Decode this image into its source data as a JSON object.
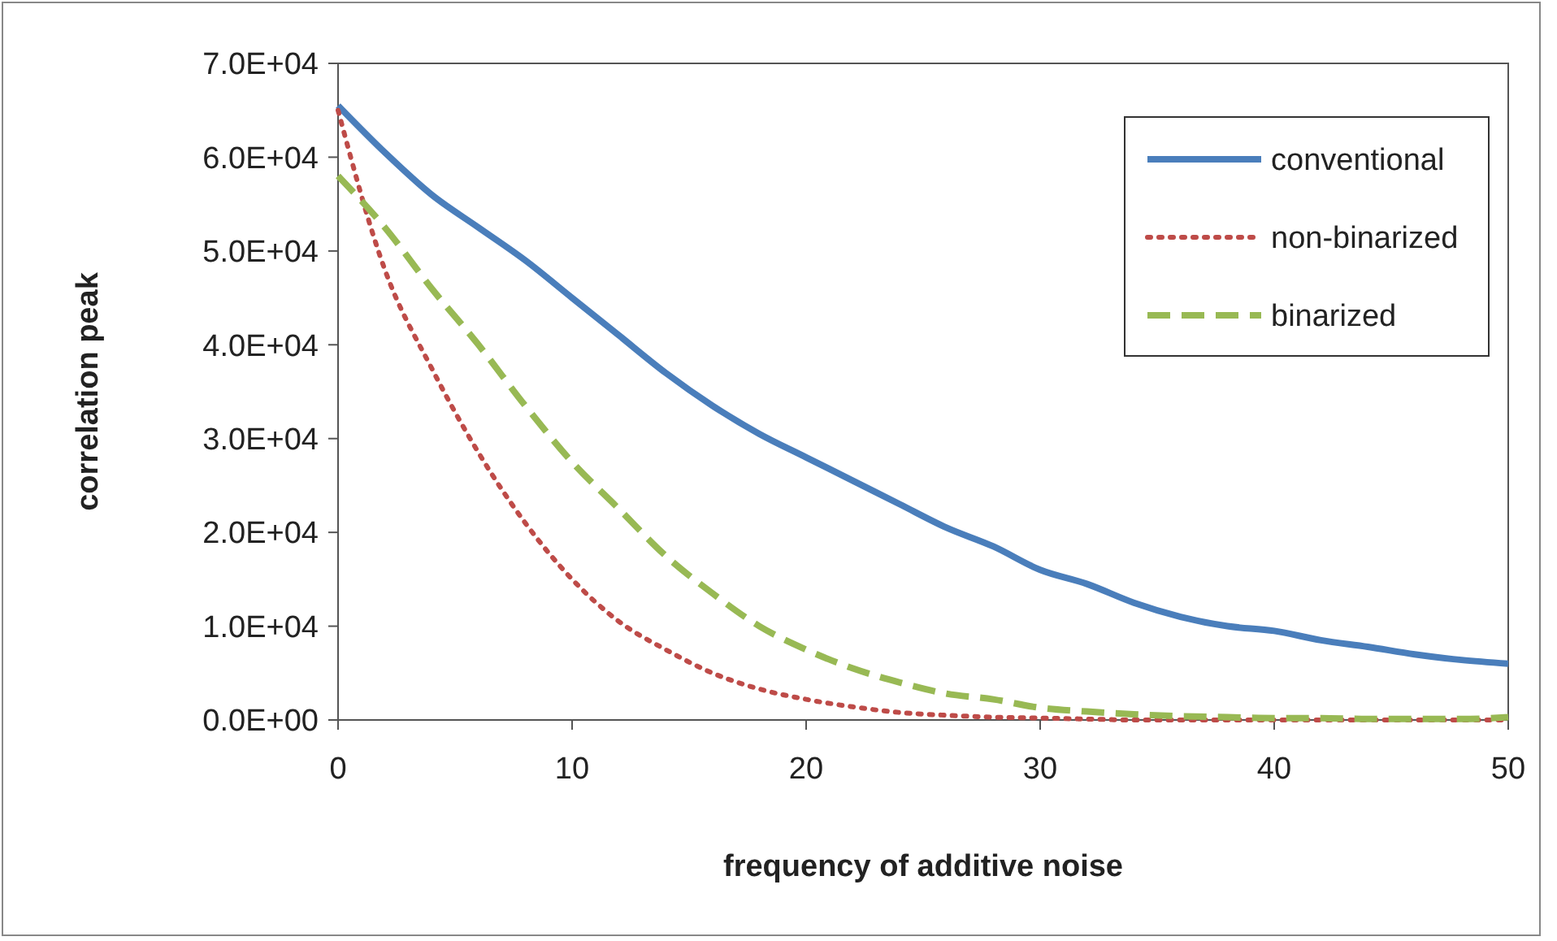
{
  "chart_data": {
    "type": "line",
    "xlabel": "frequency of additive noise",
    "ylabel": "correlation peak",
    "x": [
      0,
      2,
      4,
      6,
      8,
      10,
      12,
      14,
      16,
      18,
      20,
      22,
      24,
      26,
      28,
      30,
      32,
      34,
      36,
      38,
      40,
      42,
      44,
      46,
      48,
      50
    ],
    "xlim": [
      0,
      50
    ],
    "xticks": [
      0,
      10,
      20,
      30,
      40,
      50
    ],
    "ylim": [
      0,
      70000
    ],
    "yticks": [
      {
        "value": 0,
        "label": "0.0E+00"
      },
      {
        "value": 10000,
        "label": "1.0E+04"
      },
      {
        "value": 20000,
        "label": "2.0E+04"
      },
      {
        "value": 30000,
        "label": "3.0E+04"
      },
      {
        "value": 40000,
        "label": "4.0E+04"
      },
      {
        "value": 50000,
        "label": "5.0E+04"
      },
      {
        "value": 60000,
        "label": "6.0E+04"
      },
      {
        "value": 70000,
        "label": "7.0E+04"
      }
    ],
    "grid": false,
    "legend": "top right",
    "marker": "none",
    "series": [
      {
        "name": "conventional",
        "color": "#4a7ebb",
        "line_style": "solid",
        "values": [
          65500,
          60500,
          56000,
          52500,
          49000,
          45000,
          41000,
          37000,
          33500,
          30500,
          28000,
          25500,
          23000,
          20500,
          18500,
          16000,
          14500,
          12500,
          11000,
          10000,
          9500,
          8500,
          7800,
          7000,
          6400,
          6000
        ]
      },
      {
        "name": "non-binarized",
        "color": "#be4b48",
        "line_style": "dotted",
        "values": [
          65000,
          48000,
          37500,
          28500,
          21000,
          15000,
          10500,
          7500,
          5000,
          3300,
          2200,
          1400,
          800,
          500,
          300,
          200,
          100,
          0,
          0,
          0,
          0,
          0,
          0,
          0,
          0,
          0
        ]
      },
      {
        "name": "binarized",
        "color": "#98b954",
        "line_style": "dashed",
        "values": [
          58000,
          52500,
          46000,
          40000,
          33500,
          27500,
          22500,
          17500,
          13500,
          10000,
          7500,
          5500,
          4000,
          2800,
          2200,
          1300,
          900,
          600,
          400,
          300,
          200,
          200,
          100,
          100,
          100,
          300
        ]
      }
    ]
  }
}
